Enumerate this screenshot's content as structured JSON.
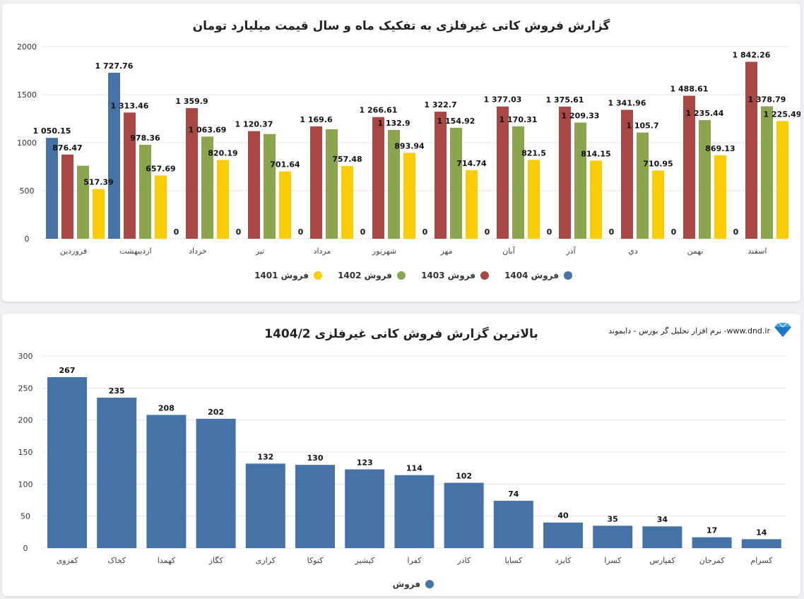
{
  "chart_data": [
    {
      "type": "bar",
      "title": "گزارش فروش کانی غیرفلزی به تفکیک ماه و سال قیمت میلیارد تومان",
      "xlabel": "",
      "ylabel": "",
      "ylim": [
        0,
        2000
      ],
      "yticks": [
        0,
        500,
        1000,
        1500,
        2000
      ],
      "grid": true,
      "legend_position": "bottom",
      "categories": [
        "فروردین",
        "اردیبهشت",
        "خرداد",
        "تیر",
        "مرداد",
        "شهریور",
        "مهر",
        "آبان",
        "آذر",
        "دي",
        "بهمن",
        "اسفند"
      ],
      "series": [
        {
          "name": "فروش 1404",
          "color": "#4572a7",
          "values": [
            1050.15,
            1727.76,
            0,
            0,
            0,
            0,
            0,
            0,
            0,
            0,
            0,
            0
          ],
          "labels": [
            "1 050.15",
            "1 727.76",
            "0",
            "0",
            "0",
            "0",
            "0",
            "0",
            "0",
            "0",
            "0",
            "0"
          ]
        },
        {
          "name": "فروش 1403",
          "color": "#aa4643",
          "values": [
            876.47,
            1313.46,
            1359.9,
            1120.37,
            1169.6,
            1266.61,
            1322.7,
            1377.03,
            1375.61,
            1341.96,
            1488.61,
            1842.26
          ],
          "labels": [
            "876.47",
            "1 313.46",
            "1 359.9",
            "1 120.37",
            "1 169.6",
            "1 266.61",
            "1 322.7",
            "1 377.03",
            "1 375.61",
            "1 341.96",
            "1 488.61",
            "1 842.26"
          ]
        },
        {
          "name": "فروش 1402",
          "color": "#89a54e",
          "values": [
            760,
            978.36,
            1063.69,
            1090,
            1140,
            1132.9,
            1154.92,
            1170.31,
            1209.33,
            1105.7,
            1235.44,
            1378.79
          ],
          "labels": [
            "",
            "978.36",
            "1 063.69",
            "",
            "",
            "1 132.9",
            "1 154.92",
            "1 170.31",
            "1 209.33",
            "1 105.7",
            "1 235.44",
            "1 378.79"
          ]
        },
        {
          "name": "فروش 1401",
          "color": "#ffcc00",
          "values": [
            517.39,
            657.69,
            820.19,
            701.64,
            757.48,
            893.94,
            714.74,
            821.5,
            814.15,
            710.95,
            869.13,
            1225.49
          ],
          "labels": [
            "517.39",
            "657.69",
            "820.19",
            "701.64",
            "757.48",
            "893.94",
            "714.74",
            "821.5",
            "814.15",
            "710.95",
            "869.13",
            "1 225.49"
          ]
        }
      ]
    },
    {
      "type": "bar",
      "title": "بالاترین گزارش فروش کانی غیرفلزی 1404/2",
      "xlabel": "",
      "ylabel": "",
      "ylim": [
        0,
        300
      ],
      "yticks": [
        0,
        50,
        100,
        150,
        200,
        250,
        300
      ],
      "grid": true,
      "legend_position": "bottom",
      "categories": [
        "کفزوی",
        "کخاک",
        "کهمدا",
        "کگاز",
        "کرازی",
        "کتوکا",
        "کپشیر",
        "کفرا",
        "کاذر",
        "کساپا",
        "کایزد",
        "کسرا",
        "کفپارس",
        "کمرجان",
        "کسرام"
      ],
      "series": [
        {
          "name": "فروش",
          "color": "#4572a7",
          "values": [
            267,
            235,
            208,
            202,
            132,
            130,
            123,
            114,
            102,
            74,
            40,
            35,
            34,
            17,
            14
          ]
        }
      ]
    }
  ],
  "brand": {
    "text": "نرم افزار تحلیل گر بورس - دایموند -www.dnd.ir",
    "icon": "diamond-icon",
    "icon_color": "#3aa0e0"
  }
}
